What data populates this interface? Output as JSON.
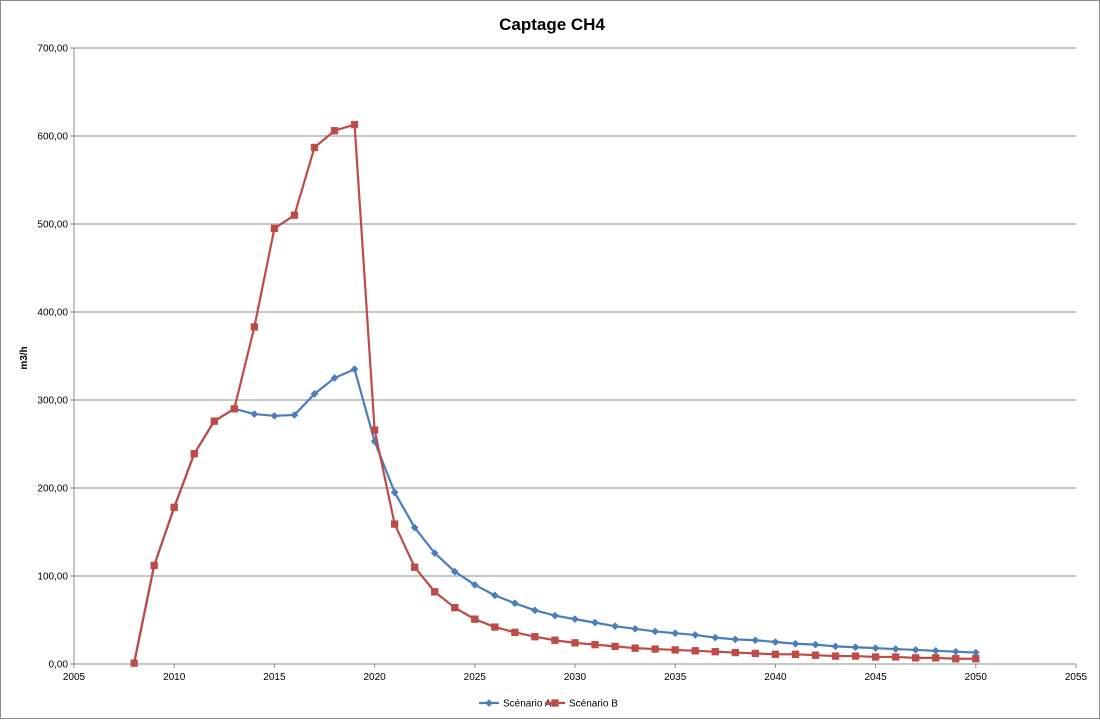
{
  "chart_data": {
    "type": "line",
    "title": "Captage CH4",
    "xlabel": "",
    "ylabel": "m3/h",
    "xlim": [
      2005,
      2055
    ],
    "ylim": [
      0,
      700
    ],
    "x_ticks": [
      "2005",
      "2010",
      "2015",
      "2020",
      "2025",
      "2030",
      "2035",
      "2040",
      "2045",
      "2050",
      "2055"
    ],
    "y_ticks": [
      "0,00",
      "100,00",
      "200,00",
      "300,00",
      "400,00",
      "500,00",
      "600,00",
      "700,00"
    ],
    "grid": "horizontal",
    "legend_position": "bottom",
    "series": [
      {
        "name": "Scénario A",
        "color": "#4a7ebb",
        "marker": "diamond",
        "x": [
          2008,
          2009,
          2010,
          2011,
          2012,
          2013,
          2014,
          2015,
          2016,
          2017,
          2018,
          2019,
          2020,
          2021,
          2022,
          2023,
          2024,
          2025,
          2026,
          2027,
          2028,
          2029,
          2030,
          2031,
          2032,
          2033,
          2034,
          2035,
          2036,
          2037,
          2038,
          2039,
          2040,
          2041,
          2042,
          2043,
          2044,
          2045,
          2046,
          2047,
          2048,
          2049,
          2050
        ],
        "values": [
          1,
          112,
          178,
          239,
          276,
          290,
          284,
          282,
          283,
          307,
          325,
          335,
          253,
          195,
          155,
          126,
          105,
          90,
          78,
          69,
          61,
          55,
          51,
          47,
          43,
          40,
          37,
          35,
          33,
          30,
          28,
          27,
          25,
          23,
          22,
          20,
          19,
          18,
          17,
          16,
          15,
          14,
          13
        ]
      },
      {
        "name": "Scénario B",
        "color": "#be4b48",
        "marker": "square",
        "x": [
          2008,
          2009,
          2010,
          2011,
          2012,
          2013,
          2014,
          2015,
          2016,
          2017,
          2018,
          2019,
          2020,
          2021,
          2022,
          2023,
          2024,
          2025,
          2026,
          2027,
          2028,
          2029,
          2030,
          2031,
          2032,
          2033,
          2034,
          2035,
          2036,
          2037,
          2038,
          2039,
          2040,
          2041,
          2042,
          2043,
          2044,
          2045,
          2046,
          2047,
          2048,
          2049,
          2050
        ],
        "values": [
          1,
          112,
          178,
          239,
          276,
          290,
          383,
          495,
          510,
          587,
          606,
          613,
          266,
          159,
          110,
          82,
          64,
          51,
          42,
          36,
          31,
          27,
          24,
          22,
          20,
          18,
          17,
          16,
          15,
          14,
          13,
          12,
          11,
          11,
          10,
          9,
          9,
          8,
          8,
          7,
          7,
          6,
          6
        ]
      }
    ]
  }
}
